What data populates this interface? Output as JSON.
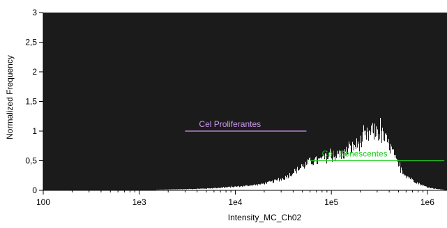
{
  "chart_data": {
    "type": "histogram",
    "xlabel": "Intensity_MC_Ch02",
    "ylabel": "Normalized Frequency",
    "x_scale": "log",
    "xlim": [
      100,
      1600000
    ],
    "ylim": [
      0,
      3
    ],
    "x_ticks": [
      {
        "value": 100,
        "label": "100"
      },
      {
        "value": 1000,
        "label": "1e3"
      },
      {
        "value": 10000,
        "label": "1e4"
      },
      {
        "value": 100000,
        "label": "1e5"
      },
      {
        "value": 1000000,
        "label": "1e6"
      }
    ],
    "y_ticks": [
      {
        "value": 0,
        "label": "0"
      },
      {
        "value": 0.5,
        "label": "0,5"
      },
      {
        "value": 1,
        "label": "1"
      },
      {
        "value": 1.5,
        "label": "1,5"
      },
      {
        "value": 2,
        "label": "2"
      },
      {
        "value": 2.5,
        "label": "2,5"
      },
      {
        "value": 3,
        "label": "3"
      }
    ],
    "grid": false,
    "colors": {
      "plot_background": "#1b1b1b",
      "histogram": "#ffffff",
      "gate_proliferantes": "#cc99ee",
      "gate_senescentes": "#22cc22"
    },
    "histogram_profile": [
      {
        "x": 1500,
        "y": 0.01
      },
      {
        "x": 3000,
        "y": 0.02
      },
      {
        "x": 5000,
        "y": 0.03
      },
      {
        "x": 8000,
        "y": 0.05
      },
      {
        "x": 12000,
        "y": 0.07
      },
      {
        "x": 18000,
        "y": 0.1
      },
      {
        "x": 25000,
        "y": 0.15
      },
      {
        "x": 32000,
        "y": 0.2
      },
      {
        "x": 40000,
        "y": 0.3
      },
      {
        "x": 50000,
        "y": 0.4
      },
      {
        "x": 60000,
        "y": 0.48
      },
      {
        "x": 75000,
        "y": 0.5
      },
      {
        "x": 90000,
        "y": 0.55
      },
      {
        "x": 110000,
        "y": 0.58
      },
      {
        "x": 130000,
        "y": 0.6
      },
      {
        "x": 160000,
        "y": 0.7
      },
      {
        "x": 200000,
        "y": 0.8
      },
      {
        "x": 250000,
        "y": 0.95
      },
      {
        "x": 300000,
        "y": 1.0
      },
      {
        "x": 350000,
        "y": 0.9
      },
      {
        "x": 420000,
        "y": 0.7
      },
      {
        "x": 500000,
        "y": 0.4
      },
      {
        "x": 600000,
        "y": 0.25
      },
      {
        "x": 800000,
        "y": 0.12
      },
      {
        "x": 1000000,
        "y": 0.05
      },
      {
        "x": 1300000,
        "y": 0.02
      },
      {
        "x": 1500000,
        "y": 0.01
      }
    ],
    "gates": [
      {
        "name": "Cel Proliferantes",
        "x_start": 3000,
        "x_end": 55000,
        "y": 1.0,
        "color": "#cc99ee"
      },
      {
        "name": "Cel. Senescentes",
        "x_start": 60000,
        "x_end": 1500000,
        "y": 0.5,
        "color": "#22cc22"
      }
    ]
  }
}
